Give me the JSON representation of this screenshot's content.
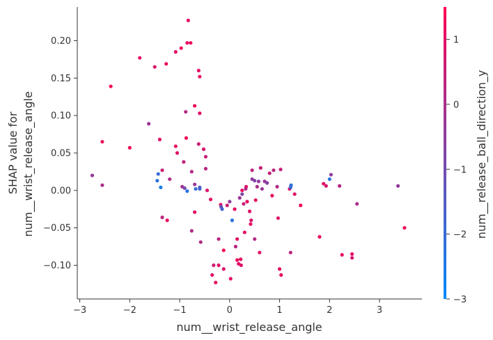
{
  "chart_data": {
    "type": "scatter",
    "title": "",
    "xlabel": "num__wrist_release_angle",
    "ylabel_lines": [
      "SHAP value for",
      "num__wrist_release_angle"
    ],
    "colorbar_label": "num__release_ball_direction_y",
    "xlim": [
      -3.05,
      3.85
    ],
    "ylim": [
      -0.145,
      0.245
    ],
    "x_ticks": [
      -3,
      -2,
      -1,
      0,
      1,
      2,
      3
    ],
    "x_tick_labels": [
      "−3",
      "−2",
      "−1",
      "0",
      "1",
      "2",
      "3"
    ],
    "y_ticks": [
      0.2,
      0.15,
      0.1,
      0.05,
      0.0,
      -0.05,
      -0.1
    ],
    "y_tick_labels": [
      "0.20",
      "0.15",
      "0.10",
      "0.05",
      "0.00",
      "−0.05",
      "−0.10"
    ],
    "colorbar": {
      "range": [
        -3,
        1.5
      ],
      "ticks": [
        1,
        0,
        -1,
        -2,
        -3
      ],
      "tick_labels": [
        "1",
        "0",
        "−1",
        "−2",
        "−3"
      ],
      "color_low": "#008afb",
      "color_high": "#ff0052"
    },
    "grid": false,
    "points": [
      {
        "x": -2.75,
        "y": 0.02,
        "c": -0.4
      },
      {
        "x": -2.55,
        "y": 0.065,
        "c": 1.2
      },
      {
        "x": -2.55,
        "y": 0.007,
        "c": 0.0
      },
      {
        "x": -2.38,
        "y": 0.139,
        "c": 1.2
      },
      {
        "x": -2.0,
        "y": 0.057,
        "c": 1.2
      },
      {
        "x": -1.8,
        "y": 0.177,
        "c": 1.0
      },
      {
        "x": -1.62,
        "y": 0.089,
        "c": -0.3
      },
      {
        "x": -1.5,
        "y": 0.165,
        "c": 0.8
      },
      {
        "x": -1.45,
        "y": 0.013,
        "c": -2.2
      },
      {
        "x": -1.43,
        "y": 0.022,
        "c": -2.0
      },
      {
        "x": -1.4,
        "y": 0.068,
        "c": 1.0
      },
      {
        "x": -1.38,
        "y": 0.004,
        "c": -2.5
      },
      {
        "x": -1.35,
        "y": 0.027,
        "c": 0.5
      },
      {
        "x": -1.35,
        "y": -0.036,
        "c": 0.3
      },
      {
        "x": -1.27,
        "y": 0.169,
        "c": 1.1
      },
      {
        "x": -1.25,
        "y": -0.04,
        "c": 1.1
      },
      {
        "x": -1.2,
        "y": 0.015,
        "c": 0.1
      },
      {
        "x": -1.08,
        "y": 0.185,
        "c": 1.0
      },
      {
        "x": -1.08,
        "y": 0.059,
        "c": 1.1
      },
      {
        "x": -1.05,
        "y": 0.05,
        "c": 1.0
      },
      {
        "x": -0.97,
        "y": 0.19,
        "c": 1.1
      },
      {
        "x": -0.95,
        "y": 0.005,
        "c": -0.1
      },
      {
        "x": -0.92,
        "y": 0.038,
        "c": 0.4
      },
      {
        "x": -0.9,
        "y": 0.003,
        "c": -1.0
      },
      {
        "x": -0.88,
        "y": 0.105,
        "c": 0.2
      },
      {
        "x": -0.87,
        "y": 0.07,
        "c": 1.2
      },
      {
        "x": -0.85,
        "y": 0.197,
        "c": 1.0
      },
      {
        "x": -0.85,
        "y": -0.001,
        "c": -2.3
      },
      {
        "x": -0.83,
        "y": 0.227,
        "c": 1.1
      },
      {
        "x": -0.78,
        "y": 0.197,
        "c": 1.2
      },
      {
        "x": -0.76,
        "y": 0.025,
        "c": 0.1
      },
      {
        "x": -0.76,
        "y": -0.054,
        "c": 0.0
      },
      {
        "x": -0.7,
        "y": 0.113,
        "c": 1.2
      },
      {
        "x": -0.7,
        "y": 0.008,
        "c": -0.3
      },
      {
        "x": -0.7,
        "y": -0.029,
        "c": 1.0
      },
      {
        "x": -0.68,
        "y": 0.002,
        "c": -2.0
      },
      {
        "x": -0.62,
        "y": 0.16,
        "c": 1.0
      },
      {
        "x": -0.62,
        "y": 0.062,
        "c": 0.5
      },
      {
        "x": -0.6,
        "y": 0.152,
        "c": 1.0
      },
      {
        "x": -0.6,
        "y": 0.103,
        "c": 1.0
      },
      {
        "x": -0.6,
        "y": 0.004,
        "c": -1.5
      },
      {
        "x": -0.6,
        "y": 0.002,
        "c": -1.8
      },
      {
        "x": -0.58,
        "y": -0.069,
        "c": 0.1
      },
      {
        "x": -0.52,
        "y": 0.055,
        "c": 0.8
      },
      {
        "x": -0.48,
        "y": 0.045,
        "c": 0.5
      },
      {
        "x": -0.48,
        "y": 0.029,
        "c": 0.3
      },
      {
        "x": -0.45,
        "y": 0.0,
        "c": 0.9
      },
      {
        "x": -0.38,
        "y": -0.012,
        "c": 1.0
      },
      {
        "x": -0.35,
        "y": -0.113,
        "c": 1.0
      },
      {
        "x": -0.32,
        "y": -0.1,
        "c": 0.6
      },
      {
        "x": -0.28,
        "y": -0.123,
        "c": 1.0
      },
      {
        "x": -0.22,
        "y": -0.065,
        "c": 0.3
      },
      {
        "x": -0.22,
        "y": -0.1,
        "c": 1.0
      },
      {
        "x": -0.18,
        "y": -0.019,
        "c": 0.8
      },
      {
        "x": -0.17,
        "y": -0.022,
        "c": -1.2
      },
      {
        "x": -0.15,
        "y": -0.025,
        "c": -1.8
      },
      {
        "x": -0.12,
        "y": -0.08,
        "c": 1.2
      },
      {
        "x": -0.12,
        "y": -0.105,
        "c": 0.8
      },
      {
        "x": -0.05,
        "y": -0.02,
        "c": 0.5
      },
      {
        "x": 0.0,
        "y": -0.015,
        "c": -0.5
      },
      {
        "x": 0.02,
        "y": -0.118,
        "c": 1.0
      },
      {
        "x": 0.05,
        "y": -0.04,
        "c": -2.2
      },
      {
        "x": 0.1,
        "y": -0.025,
        "c": 1.1
      },
      {
        "x": 0.12,
        "y": -0.075,
        "c": 0.2
      },
      {
        "x": 0.15,
        "y": -0.065,
        "c": 1.0
      },
      {
        "x": 0.15,
        "y": -0.093,
        "c": 1.2
      },
      {
        "x": 0.18,
        "y": -0.098,
        "c": 1.0
      },
      {
        "x": 0.2,
        "y": -0.01,
        "c": -0.3
      },
      {
        "x": 0.22,
        "y": -0.092,
        "c": 1.0
      },
      {
        "x": 0.23,
        "y": -0.1,
        "c": 0.9
      },
      {
        "x": 0.25,
        "y": 0.0,
        "c": 1.1
      },
      {
        "x": 0.25,
        "y": -0.005,
        "c": -0.8
      },
      {
        "x": 0.28,
        "y": -0.018,
        "c": 0.5
      },
      {
        "x": 0.3,
        "y": -0.056,
        "c": 1.0
      },
      {
        "x": 0.32,
        "y": 0.002,
        "c": -0.1
      },
      {
        "x": 0.33,
        "y": 0.005,
        "c": 0.9
      },
      {
        "x": 0.35,
        "y": -0.015,
        "c": 1.1
      },
      {
        "x": 0.4,
        "y": -0.028,
        "c": 1.0
      },
      {
        "x": 0.42,
        "y": -0.045,
        "c": 1.0
      },
      {
        "x": 0.43,
        "y": -0.04,
        "c": 0.9
      },
      {
        "x": 0.45,
        "y": 0.015,
        "c": -0.5
      },
      {
        "x": 0.45,
        "y": 0.027,
        "c": 0.3
      },
      {
        "x": 0.5,
        "y": 0.013,
        "c": -0.7
      },
      {
        "x": 0.5,
        "y": -0.065,
        "c": 0.2
      },
      {
        "x": 0.52,
        "y": -0.013,
        "c": 1.0
      },
      {
        "x": 0.55,
        "y": 0.005,
        "c": 0.0
      },
      {
        "x": 0.58,
        "y": 0.012,
        "c": -0.5
      },
      {
        "x": 0.6,
        "y": -0.083,
        "c": 1.0
      },
      {
        "x": 0.62,
        "y": 0.03,
        "c": 0.5
      },
      {
        "x": 0.65,
        "y": 0.002,
        "c": -0.3
      },
      {
        "x": 0.7,
        "y": 0.012,
        "c": -0.3
      },
      {
        "x": 0.75,
        "y": 0.01,
        "c": -0.6
      },
      {
        "x": 0.8,
        "y": 0.023,
        "c": 0.5
      },
      {
        "x": 0.85,
        "y": -0.007,
        "c": 1.1
      },
      {
        "x": 0.88,
        "y": 0.027,
        "c": 0.3
      },
      {
        "x": 0.95,
        "y": 0.005,
        "c": 0.1
      },
      {
        "x": 0.97,
        "y": -0.037,
        "c": 0.9
      },
      {
        "x": 1.0,
        "y": -0.105,
        "c": 1.0
      },
      {
        "x": 1.02,
        "y": 0.028,
        "c": 0.5
      },
      {
        "x": 1.03,
        "y": -0.113,
        "c": 1.1
      },
      {
        "x": 1.2,
        "y": 0.002,
        "c": 1.0
      },
      {
        "x": 1.22,
        "y": -0.083,
        "c": 0.3
      },
      {
        "x": 1.23,
        "y": 0.007,
        "c": -2.2
      },
      {
        "x": 1.22,
        "y": 0.004,
        "c": -2.0
      },
      {
        "x": 1.3,
        "y": -0.005,
        "c": 1.0
      },
      {
        "x": 1.42,
        "y": -0.02,
        "c": 1.2
      },
      {
        "x": 1.8,
        "y": -0.062,
        "c": 1.1
      },
      {
        "x": 1.88,
        "y": 0.009,
        "c": 0.9
      },
      {
        "x": 1.93,
        "y": 0.006,
        "c": 0.7
      },
      {
        "x": 2.0,
        "y": 0.015,
        "c": -2.3
      },
      {
        "x": 2.03,
        "y": 0.021,
        "c": -0.5
      },
      {
        "x": 2.2,
        "y": 0.006,
        "c": 0.2
      },
      {
        "x": 2.25,
        "y": -0.086,
        "c": 1.1
      },
      {
        "x": 2.45,
        "y": -0.085,
        "c": 1.0
      },
      {
        "x": 2.45,
        "y": -0.09,
        "c": 0.8
      },
      {
        "x": 2.55,
        "y": -0.018,
        "c": 0.0
      },
      {
        "x": 3.37,
        "y": 0.006,
        "c": -0.4
      },
      {
        "x": 3.5,
        "y": -0.05,
        "c": 1.2
      }
    ]
  }
}
